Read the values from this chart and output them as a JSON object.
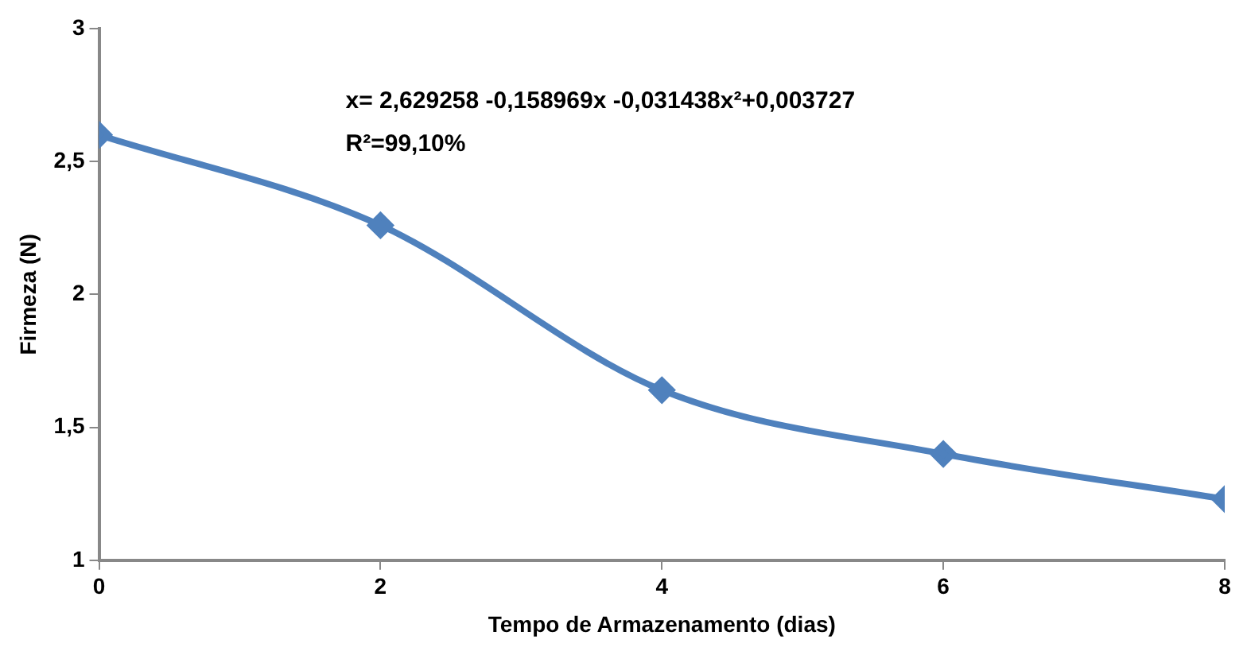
{
  "chart_data": {
    "type": "line",
    "xlabel": "Tempo de Armazenamento (dias)",
    "ylabel": "Firmeza (N)",
    "x": [
      0,
      2,
      4,
      6,
      8
    ],
    "series": [
      {
        "color": "#4f81bd",
        "values": [
          2.6,
          2.26,
          1.64,
          1.4,
          1.23
        ]
      }
    ],
    "xlim": [
      0,
      8
    ],
    "xticks": [
      0,
      2,
      4,
      6,
      8
    ],
    "ylim": [
      1,
      3
    ],
    "yticks": [
      1,
      {
        "value": 1.5,
        "label": "1,5"
      },
      2,
      {
        "value": 2.5,
        "label": "2,5"
      },
      3
    ],
    "annotations": [
      "x= 2,629258 -0,158969x -0,031438x²+0,003727",
      "R²=99,10%"
    ],
    "grid": false,
    "legend": false,
    "marker": "diamond",
    "line_style": "solid"
  }
}
